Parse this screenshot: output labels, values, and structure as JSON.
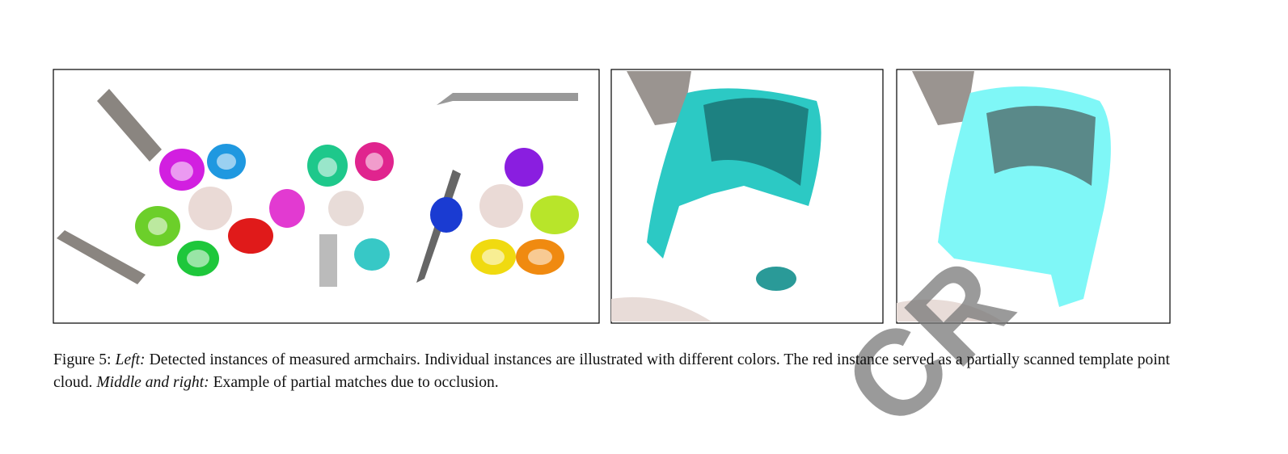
{
  "figure": {
    "watermark": "CR",
    "caption": {
      "label": "Figure 5:",
      "left_label": "Left:",
      "left_text": "Detected instances of measured armchairs. Individual instances are illustrated with different colors. The red instance served as a partially scanned template point cloud.",
      "middle_right_label": "Middle and right:",
      "middle_right_text": "Example of partial matches due to occlusion."
    }
  }
}
